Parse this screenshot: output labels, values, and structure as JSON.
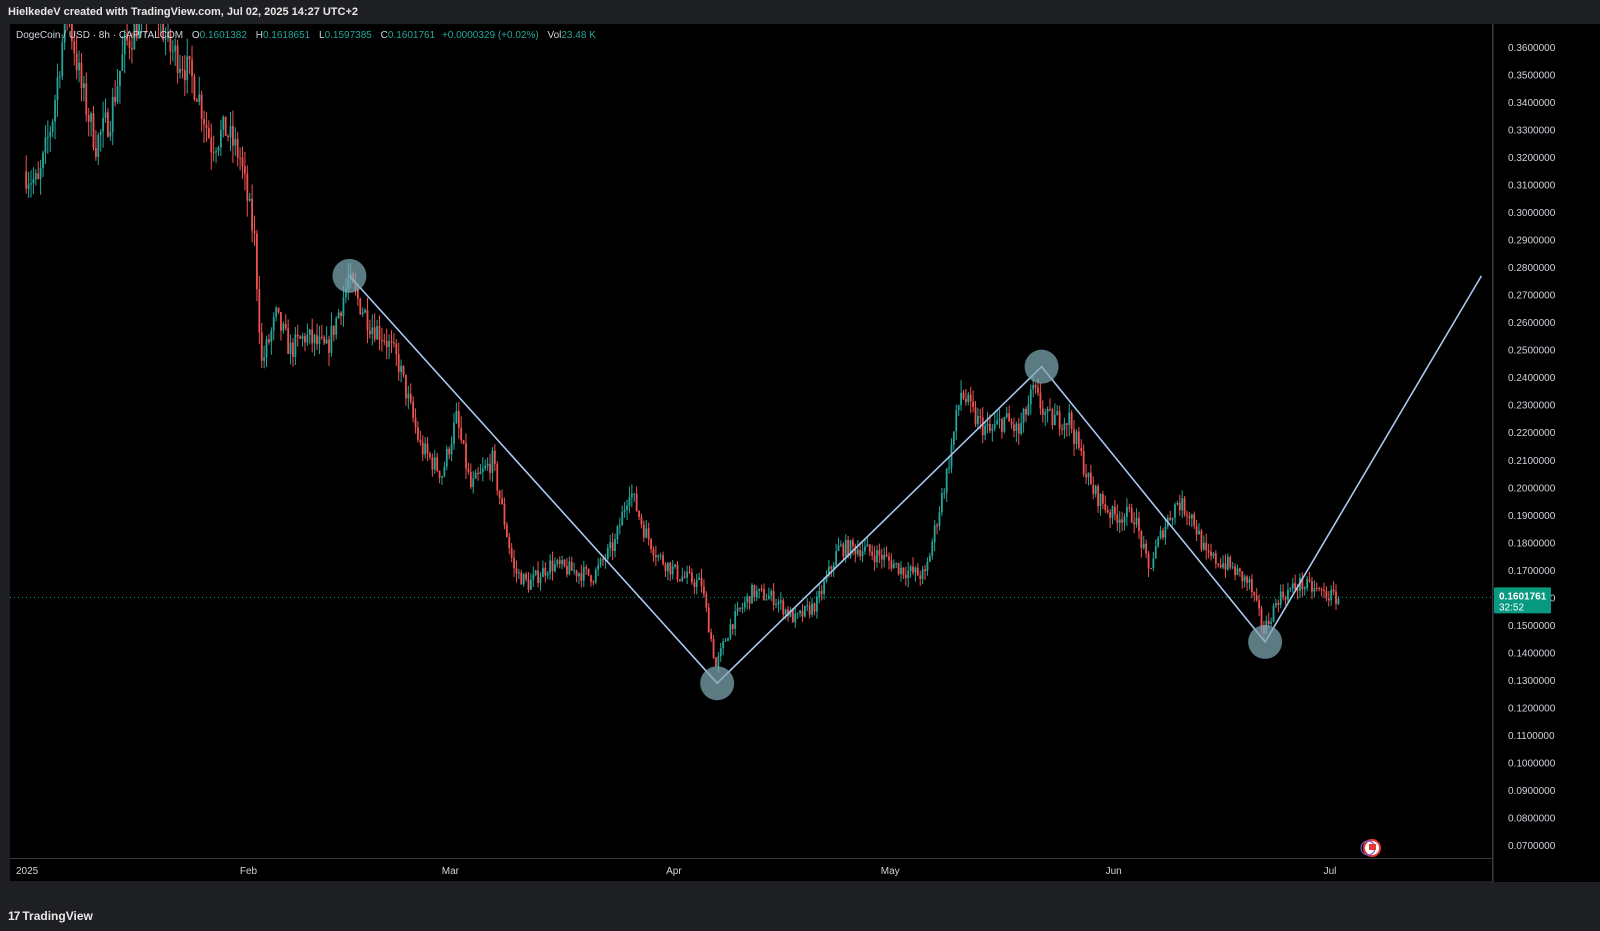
{
  "header": {
    "attribution": "HielkedeV created with TradingView.com, Jul 02, 2025 14:27 UTC+2"
  },
  "legend": {
    "symbol": "DogeCoin / USD · 8h · CAPITALCOM",
    "open_label": "O",
    "open": "0.1601382",
    "high_label": "H",
    "high": "0.1618651",
    "low_label": "L",
    "low": "0.1597385",
    "close_label": "C",
    "close": "0.1601761",
    "change": "+0.0000329 (+0.02%)",
    "vol_label": "Vol",
    "vol": "23.48 K"
  },
  "footer": {
    "logo_mark": "17",
    "logo_text": "TradingView"
  },
  "colors": {
    "background": "#000000",
    "up": "#26a69a",
    "down": "#ef5350",
    "line": "#a8c8f0",
    "marker": "#7fa9b4",
    "price_tag": "#089981",
    "panel": "#1e1f22"
  },
  "chart_data": {
    "type": "candlestick",
    "symbol": "DogeCoin / USD",
    "timeframe": "8h",
    "ylim": [
      0.0655,
      0.3685
    ],
    "yticks": [
      "0.3600000",
      "0.3500000",
      "0.3400000",
      "0.3300000",
      "0.3200000",
      "0.3100000",
      "0.3000000",
      "0.2900000",
      "0.2800000",
      "0.2700000",
      "0.2600000",
      "0.2500000",
      "0.2400000",
      "0.2300000",
      "0.2200000",
      "0.2100000",
      "0.2000000",
      "0.1900000",
      "0.1800000",
      "0.1700000",
      "0.1600000",
      "0.1500000",
      "0.1400000",
      "0.1300000",
      "0.1200000",
      "0.1100000",
      "0.1000000",
      "0.0900000",
      "0.0800000",
      "0.0700000"
    ],
    "xticks": [
      {
        "label": "2025",
        "date": "2025-01-01"
      },
      {
        "label": "Feb",
        "date": "2025-02-01"
      },
      {
        "label": "Mar",
        "date": "2025-03-01"
      },
      {
        "label": "Apr",
        "date": "2025-04-01"
      },
      {
        "label": "May",
        "date": "2025-05-01"
      },
      {
        "label": "Jun",
        "date": "2025-06-01"
      },
      {
        "label": "Jul",
        "date": "2025-07-01"
      }
    ],
    "price_path": [
      [
        "2025-01-01",
        0.315
      ],
      [
        "2025-01-03",
        0.31
      ],
      [
        "2025-01-05",
        0.335
      ],
      [
        "2025-01-07",
        0.375
      ],
      [
        "2025-01-09",
        0.345
      ],
      [
        "2025-01-11",
        0.325
      ],
      [
        "2025-01-13",
        0.335
      ],
      [
        "2025-01-15",
        0.36
      ],
      [
        "2025-01-17",
        0.37
      ],
      [
        "2025-01-19",
        0.38
      ],
      [
        "2025-01-21",
        0.36
      ],
      [
        "2025-01-23",
        0.355
      ],
      [
        "2025-01-25",
        0.345
      ],
      [
        "2025-01-27",
        0.325
      ],
      [
        "2025-01-29",
        0.33
      ],
      [
        "2025-01-31",
        0.32
      ],
      [
        "2025-02-02",
        0.29
      ],
      [
        "2025-02-03",
        0.245
      ],
      [
        "2025-02-05",
        0.262
      ],
      [
        "2025-02-07",
        0.25
      ],
      [
        "2025-02-09",
        0.255
      ],
      [
        "2025-02-12",
        0.25
      ],
      [
        "2025-02-15",
        0.275
      ],
      [
        "2025-02-18",
        0.26
      ],
      [
        "2025-02-20",
        0.255
      ],
      [
        "2025-02-22",
        0.245
      ],
      [
        "2025-02-25",
        0.215
      ],
      [
        "2025-02-28",
        0.205
      ],
      [
        "2025-03-02",
        0.225
      ],
      [
        "2025-03-04",
        0.2
      ],
      [
        "2025-03-07",
        0.21
      ],
      [
        "2025-03-10",
        0.17
      ],
      [
        "2025-03-12",
        0.165
      ],
      [
        "2025-03-15",
        0.172
      ],
      [
        "2025-03-18",
        0.17
      ],
      [
        "2025-03-21",
        0.168
      ],
      [
        "2025-03-24",
        0.18
      ],
      [
        "2025-03-26",
        0.2
      ],
      [
        "2025-03-28",
        0.185
      ],
      [
        "2025-03-30",
        0.175
      ],
      [
        "2025-04-02",
        0.168
      ],
      [
        "2025-04-05",
        0.165
      ],
      [
        "2025-04-07",
        0.135
      ],
      [
        "2025-04-09",
        0.15
      ],
      [
        "2025-04-12",
        0.162
      ],
      [
        "2025-04-15",
        0.16
      ],
      [
        "2025-04-18",
        0.152
      ],
      [
        "2025-04-21",
        0.158
      ],
      [
        "2025-04-24",
        0.178
      ],
      [
        "2025-04-27",
        0.178
      ],
      [
        "2025-04-30",
        0.175
      ],
      [
        "2025-05-03",
        0.17
      ],
      [
        "2025-05-06",
        0.168
      ],
      [
        "2025-05-09",
        0.205
      ],
      [
        "2025-05-11",
        0.235
      ],
      [
        "2025-05-13",
        0.225
      ],
      [
        "2025-05-15",
        0.22
      ],
      [
        "2025-05-17",
        0.225
      ],
      [
        "2025-05-19",
        0.22
      ],
      [
        "2025-05-21",
        0.235
      ],
      [
        "2025-05-23",
        0.225
      ],
      [
        "2025-05-26",
        0.225
      ],
      [
        "2025-05-29",
        0.2
      ],
      [
        "2025-06-01",
        0.19
      ],
      [
        "2025-06-04",
        0.19
      ],
      [
        "2025-06-06",
        0.17
      ],
      [
        "2025-06-08",
        0.185
      ],
      [
        "2025-06-10",
        0.195
      ],
      [
        "2025-06-12",
        0.19
      ],
      [
        "2025-06-14",
        0.175
      ],
      [
        "2025-06-17",
        0.172
      ],
      [
        "2025-06-20",
        0.165
      ],
      [
        "2025-06-22",
        0.148
      ],
      [
        "2025-06-24",
        0.16
      ],
      [
        "2025-06-27",
        0.165
      ],
      [
        "2025-06-30",
        0.162
      ],
      [
        "2025-07-02",
        0.16
      ]
    ],
    "last_price": {
      "value": 0.1601761,
      "label": "0.1601761",
      "countdown": "32:52"
    },
    "swing_points": [
      {
        "date": "2025-02-15",
        "price": 0.277
      },
      {
        "date": "2025-04-07",
        "price": 0.129
      },
      {
        "date": "2025-05-22",
        "price": 0.244
      },
      {
        "date": "2025-06-22",
        "price": 0.144
      }
    ],
    "projection_line": [
      {
        "date": "2025-02-15",
        "price": 0.277
      },
      {
        "date": "2025-04-07",
        "price": 0.129
      },
      {
        "date": "2025-05-22",
        "price": 0.244
      },
      {
        "date": "2025-06-22",
        "price": 0.144
      },
      {
        "date": "2025-07-22",
        "price": 0.277
      }
    ]
  }
}
